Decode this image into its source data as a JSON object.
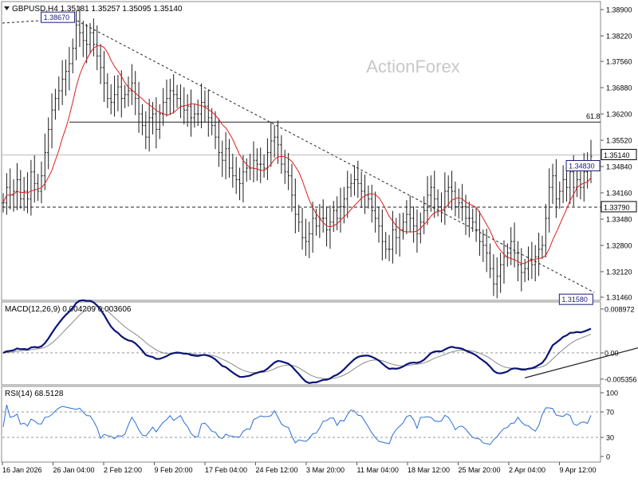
{
  "chart_data": {
    "type": "line",
    "symbol_header": "GBPUSD,H4  1.35181 1.35257 1.35095 1.35140",
    "watermark": "ActionForex",
    "x_tick_labels": [
      "16 Jan 2026",
      "26 Jan 04:00",
      "2 Feb 12:00",
      "9 Feb 20:00",
      "17 Feb 04:00",
      "24 Feb 12:00",
      "3 Mar 20:00",
      "11 Mar 04:00",
      "18 Mar 12:00",
      "25 Mar 20:00",
      "2 Apr 04:00",
      "9 Apr 12:00"
    ],
    "price_panel": {
      "ylim": [
        1.3146,
        1.389
      ],
      "y_ticks": [
        "1.38900",
        "1.38220",
        "1.37560",
        "1.36880",
        "1.36200",
        "1.35520",
        "1.34840",
        "1.34160",
        "1.33480",
        "1.32800",
        "1.32120",
        "1.31460"
      ],
      "current_price": "1.35140",
      "labels": {
        "high": "1.38670",
        "low": "1.31580",
        "recent_high": "1.34830",
        "support": "1.33790",
        "fib": "61.8"
      },
      "levels": {
        "fib_61_8": 1.3599,
        "support": 1.3379,
        "current": 1.3514
      },
      "trendline": [
        [
          20,
          1.3867
        ],
        [
          170,
          1.3158
        ]
      ],
      "price": [
        1.339,
        1.343,
        1.341,
        1.342,
        1.345,
        1.34,
        1.342,
        1.34,
        1.347,
        1.344,
        1.342,
        1.346,
        1.352,
        1.358,
        1.363,
        1.366,
        1.368,
        1.371,
        1.373,
        1.375,
        1.379,
        1.385,
        1.383,
        1.381,
        1.38,
        1.383,
        1.38,
        1.377,
        1.374,
        1.37,
        1.366,
        1.365,
        1.367,
        1.369,
        1.366,
        1.367,
        1.368,
        1.37,
        1.366,
        1.362,
        1.359,
        1.356,
        1.361,
        1.362,
        1.358,
        1.362,
        1.365,
        1.366,
        1.368,
        1.367,
        1.366,
        1.364,
        1.363,
        1.364,
        1.361,
        1.362,
        1.362,
        1.365,
        1.364,
        1.361,
        1.359,
        1.356,
        1.352,
        1.35,
        1.353,
        1.348,
        1.346,
        1.345,
        1.344,
        1.347,
        1.348,
        1.348,
        1.35,
        1.349,
        1.349,
        1.348,
        1.352,
        1.355,
        1.356,
        1.354,
        1.349,
        1.347,
        1.346,
        1.341,
        1.336,
        1.334,
        1.33,
        1.329,
        1.331,
        1.335,
        1.333,
        1.335,
        1.335,
        1.332,
        1.334,
        1.337,
        1.335,
        1.338,
        1.34,
        1.343,
        1.344,
        1.345,
        1.344,
        1.342,
        1.341,
        1.34,
        1.337,
        1.335,
        1.333,
        1.329,
        1.327,
        1.327,
        1.332,
        1.33,
        1.332,
        1.334,
        1.336,
        1.335,
        1.333,
        1.331,
        1.334,
        1.337,
        1.341,
        1.343,
        1.34,
        1.338,
        1.337,
        1.342,
        1.343,
        1.342,
        1.338,
        1.339,
        1.338,
        1.335,
        1.335,
        1.334,
        1.332,
        1.329,
        1.328,
        1.326,
        1.322,
        1.318,
        1.32,
        1.323,
        1.325,
        1.326,
        1.329,
        1.326,
        1.323,
        1.321,
        1.322,
        1.324,
        1.323,
        1.325,
        1.327,
        1.328,
        1.335,
        1.343,
        1.346,
        1.34,
        1.342,
        1.345,
        1.343,
        1.347,
        1.343,
        1.345,
        1.343,
        1.347,
        1.349,
        1.351
      ]
    },
    "macd_panel": {
      "label": "MACD(12,26,9) 0.004209 0.003606",
      "ylim": [
        -0.0062,
        0.0096
      ],
      "y_ticks": [
        "0.008972",
        "0.00",
        "-0.005356"
      ],
      "trendline": [
        [
          150,
          -0.0051
        ],
        [
          184,
          0.0013
        ]
      ]
    },
    "rsi_panel": {
      "label": "RSI(14) 68.5128",
      "ylim": [
        0,
        100
      ],
      "y_ticks": [
        "100",
        "70",
        "30",
        "0"
      ],
      "levels": [
        70,
        30
      ]
    },
    "colors": {
      "price": "#1c1c1c",
      "ma": "#e01f1f",
      "macd": "#0c1478",
      "signal": "#8a8a8a",
      "rsi": "#2a6fd6",
      "trendline": "#222222"
    }
  }
}
